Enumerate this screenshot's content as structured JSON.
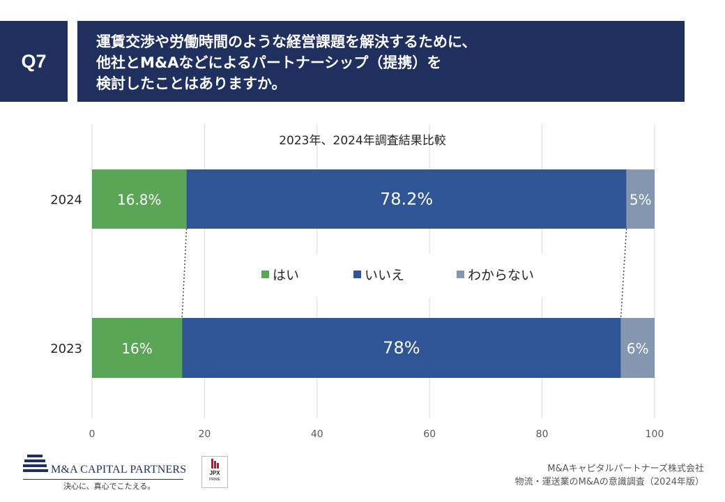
{
  "question": {
    "label": "Q7",
    "title_lines": [
      "運賃交渉や労働時間のような経営課題を解決するために、",
      "他社とM&Aなどによるパートナーシップ（提携）を",
      "検討したことはありますか。"
    ]
  },
  "chart_data": {
    "type": "bar",
    "orientation": "horizontal",
    "stacked": true,
    "title": "2023年、2024年調査結果比較",
    "categories": [
      "2024",
      "2023"
    ],
    "series": [
      {
        "name": "はい",
        "values": [
          16.8,
          16
        ],
        "labels": [
          "16.8%",
          "16%"
        ],
        "color": "#5aa656"
      },
      {
        "name": "いいえ",
        "values": [
          78.2,
          78
        ],
        "labels": [
          "78.2%",
          "78%"
        ],
        "color": "#2f5597"
      },
      {
        "name": "わからない",
        "values": [
          5,
          6
        ],
        "labels": [
          "5%",
          "6%"
        ],
        "color": "#8496b0"
      }
    ],
    "xlim": [
      0,
      100
    ],
    "xticks": [
      0,
      20,
      40,
      60,
      80,
      100
    ],
    "grid": true,
    "legend_position": "center",
    "connector_lines": "dotted"
  },
  "footer": {
    "logo_name": "M&A CAPITAL PARTNERS",
    "logo_tagline": "決心に、真心でこたえる。",
    "jpx_name": "JPX",
    "jpx_sub": "PRIME",
    "company": "M&Aキャピタルパートナーズ株式会社",
    "survey": "物流・運送業のM&Aの意識調査（2024年版）"
  }
}
